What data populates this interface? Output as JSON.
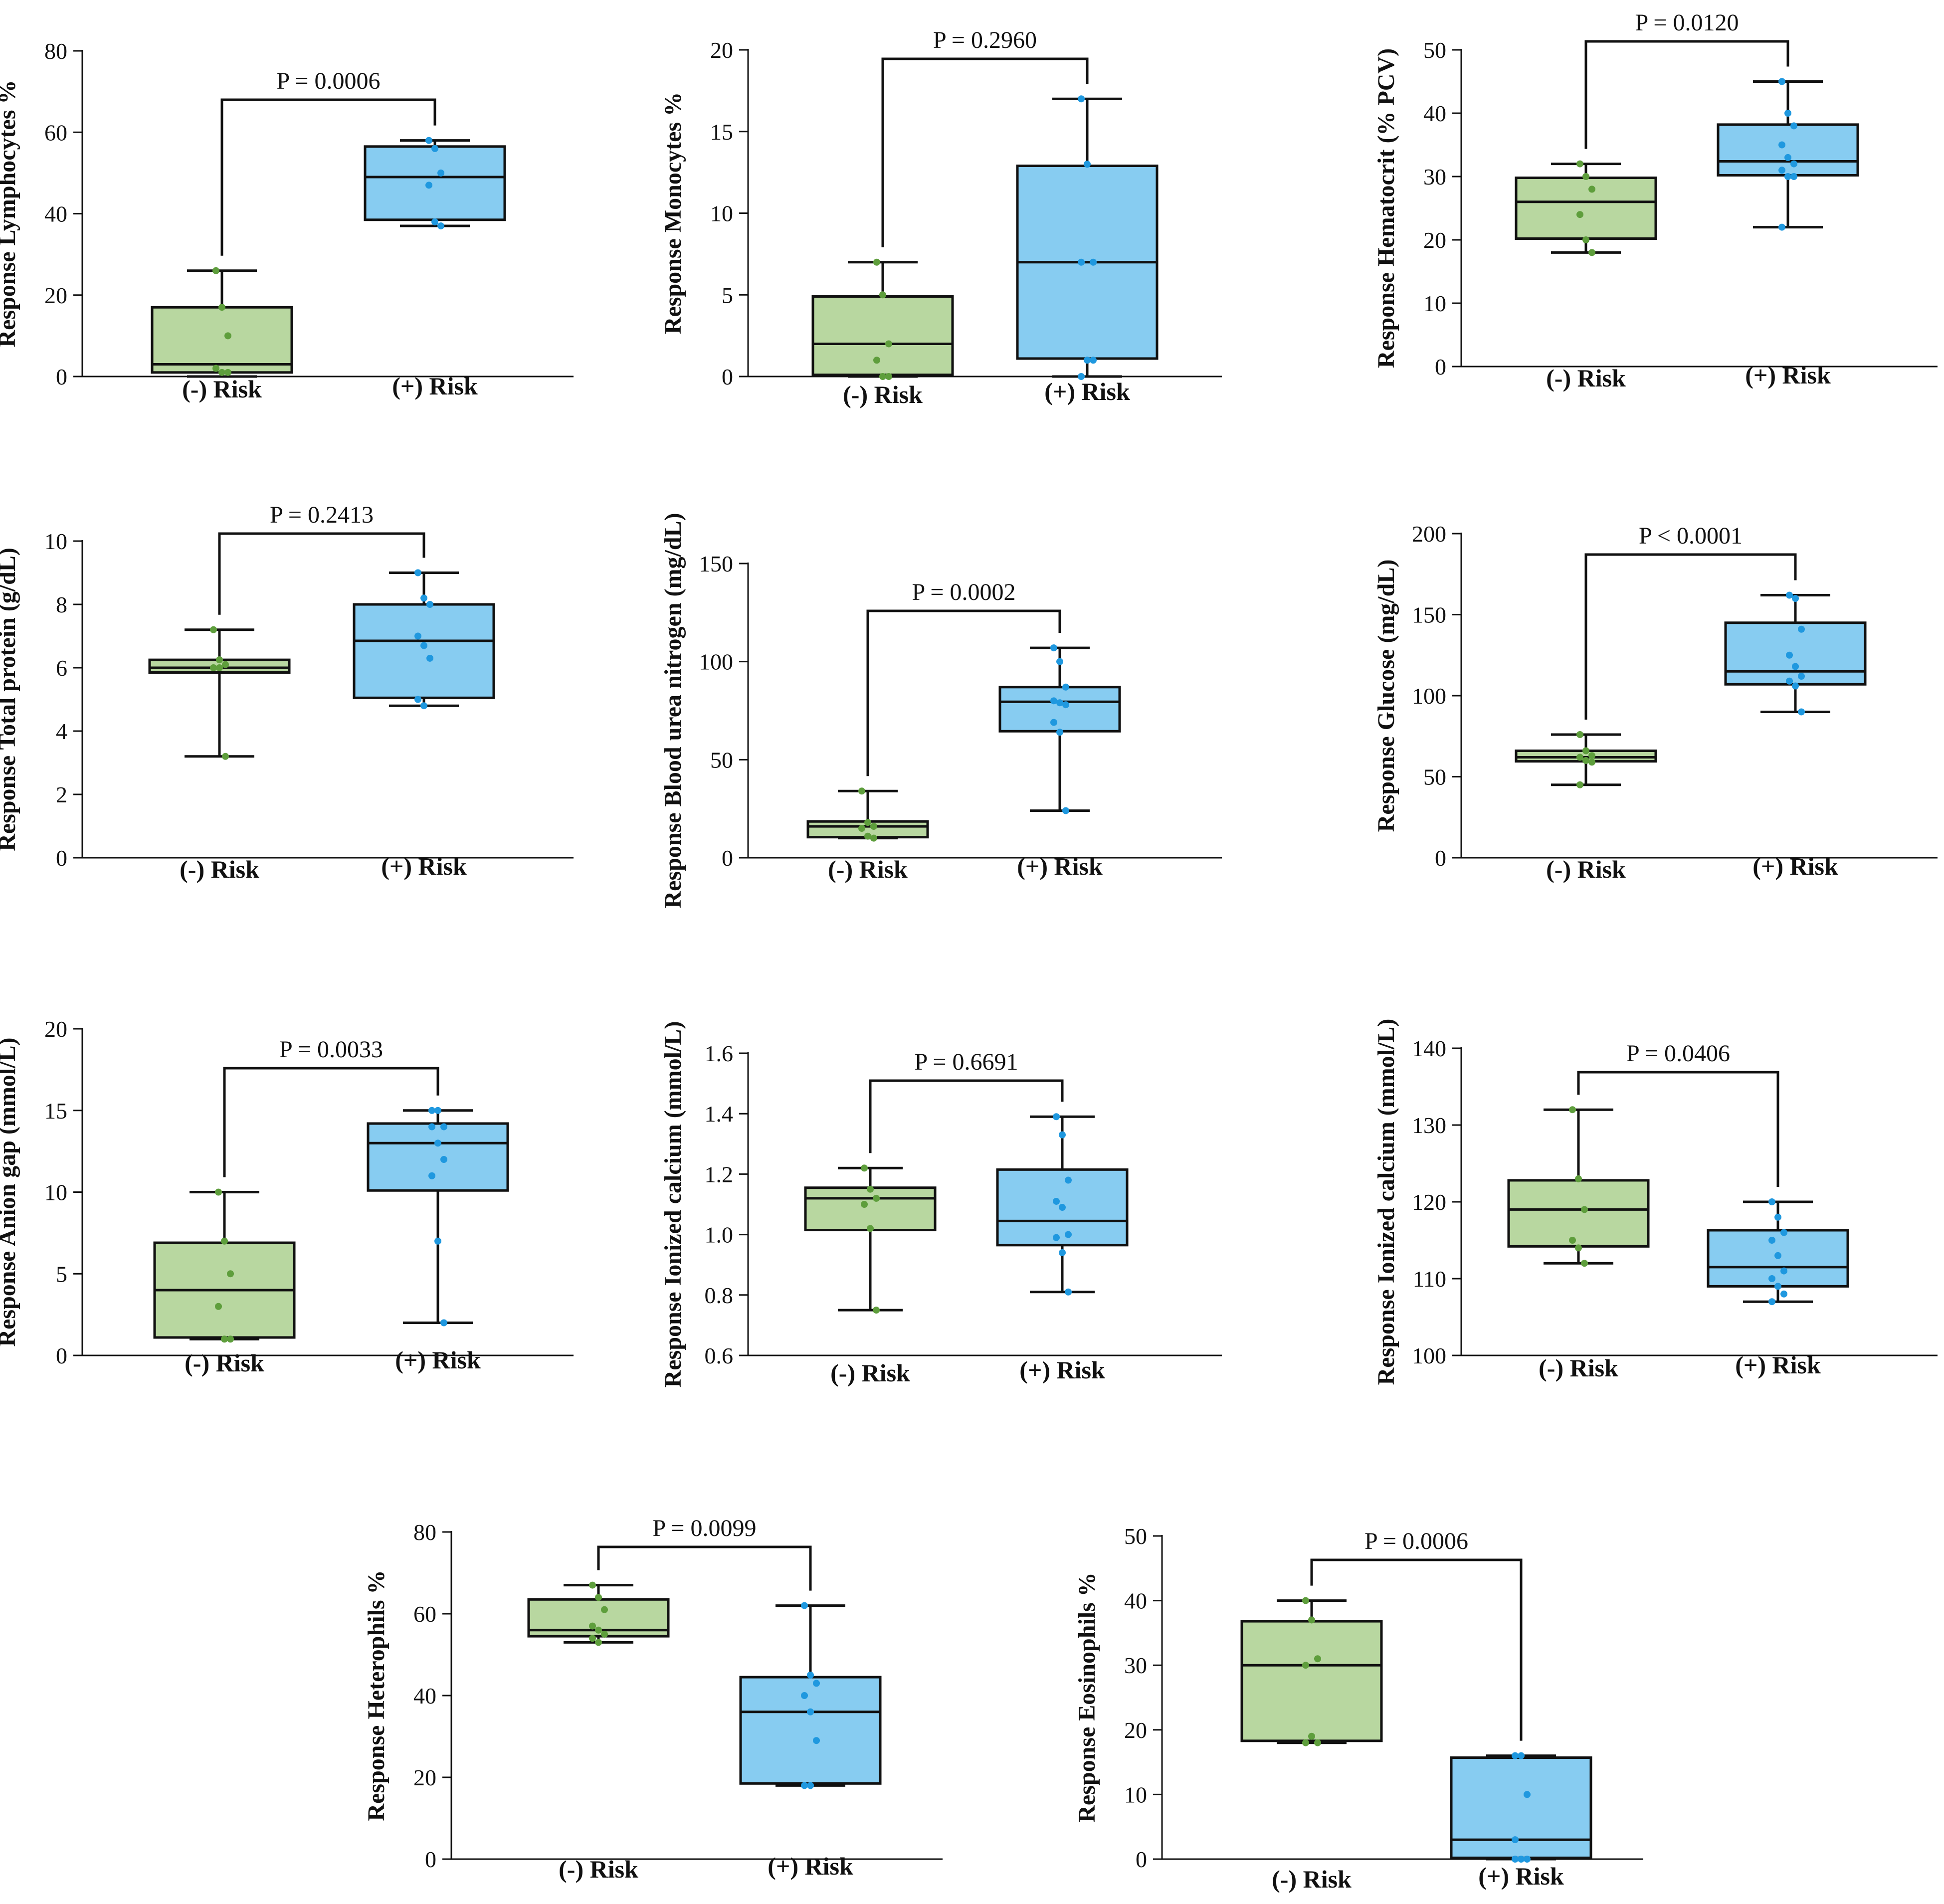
{
  "colors": {
    "neg_fill": "#b8d7a0",
    "pos_fill": "#87ccf1",
    "neg_dot": "#5e9e3c",
    "pos_dot": "#1f98df",
    "stroke": "#111111"
  },
  "chart_data": [
    {
      "type": "box",
      "ylabel": "Response Lymphocytes %",
      "ylim": [
        0,
        80
      ],
      "yticks": [
        0,
        20,
        40,
        60,
        80
      ],
      "yticklabels": [
        "0",
        "20",
        "40",
        "60",
        "80"
      ],
      "pvalue": "P = 0.0006",
      "categories": [
        "(-) Risk",
        "(+) Risk"
      ],
      "series": [
        {
          "name": "(-) Risk",
          "min": 0,
          "q1": 1,
          "median": 3,
          "q3": 17,
          "max": 26,
          "points": [
            26,
            17,
            10,
            2,
            1,
            1
          ]
        },
        {
          "name": "(+) Risk",
          "min": 37,
          "q1": 38.5,
          "median": 49,
          "q3": 56.5,
          "max": 58,
          "points": [
            58,
            56,
            50,
            47,
            38,
            37
          ]
        }
      ]
    },
    {
      "type": "box",
      "ylabel": "Response Monocytes %",
      "ylim": [
        0,
        20
      ],
      "yticks": [
        0,
        5,
        10,
        15,
        20
      ],
      "yticklabels": [
        "0",
        "5",
        "10",
        "15",
        "20"
      ],
      "pvalue": "P = 0.2960",
      "categories": [
        "(-) Risk",
        "(+) Risk"
      ],
      "series": [
        {
          "name": "(-) Risk",
          "min": 0,
          "q1": 0.1,
          "median": 2,
          "q3": 4.9,
          "max": 7,
          "points": [
            7,
            5,
            2,
            1,
            0,
            0
          ]
        },
        {
          "name": "(+) Risk",
          "min": 0,
          "q1": 1.1,
          "median": 7,
          "q3": 12.9,
          "max": 17,
          "points": [
            17,
            13,
            7,
            7,
            1,
            1,
            0
          ]
        }
      ]
    },
    {
      "type": "box",
      "ylabel": "Response Hematocrit (% PCV)",
      "ylim": [
        0,
        50
      ],
      "yticks": [
        0,
        10,
        20,
        30,
        40,
        50
      ],
      "yticklabels": [
        "0",
        "10",
        "20",
        "30",
        "40",
        "50"
      ],
      "pvalue": "P = 0.0120",
      "categories": [
        "(-) Risk",
        "(+) Risk"
      ],
      "series": [
        {
          "name": "(-) Risk",
          "min": 18,
          "q1": 20.2,
          "median": 26,
          "q3": 29.8,
          "max": 32,
          "points": [
            32,
            30,
            28,
            24,
            20,
            18
          ]
        },
        {
          "name": "(+) Risk",
          "min": 22,
          "q1": 30.2,
          "median": 32.4,
          "q3": 38.2,
          "max": 45,
          "points": [
            45,
            40,
            38,
            35,
            33,
            32,
            31,
            30,
            30,
            22
          ]
        }
      ]
    },
    {
      "type": "box",
      "ylabel": "Response Total protein (g/dL)",
      "ylim": [
        0,
        10
      ],
      "yticks": [
        0,
        2,
        4,
        6,
        8,
        10
      ],
      "yticklabels": [
        "0",
        "2",
        "4",
        "6",
        "8",
        "10"
      ],
      "pvalue": "P = 0.2413",
      "categories": [
        "(-) Risk",
        "(+) Risk"
      ],
      "series": [
        {
          "name": "(-) Risk",
          "min": 3.2,
          "q1": 5.85,
          "median": 6.0,
          "q3": 6.25,
          "max": 7.2,
          "points": [
            7.2,
            6.25,
            6.1,
            6.0,
            6.0,
            3.2
          ]
        },
        {
          "name": "(+) Risk",
          "min": 4.8,
          "q1": 5.05,
          "median": 6.85,
          "q3": 8.0,
          "max": 9.0,
          "points": [
            9.0,
            8.2,
            8.0,
            7.0,
            6.7,
            6.3,
            5.0,
            4.8
          ]
        }
      ]
    },
    {
      "type": "box",
      "ylabel": "Response Blood urea nitrogen (mg/dL)",
      "ylim": [
        0,
        150
      ],
      "yticks": [
        0,
        50,
        100,
        150
      ],
      "yticklabels": [
        "0",
        "50",
        "100",
        "150"
      ],
      "pvalue": "P = 0.0002",
      "categories": [
        "(-) Risk",
        "(+) Risk"
      ],
      "series": [
        {
          "name": "(-) Risk",
          "min": 10,
          "q1": 10.5,
          "median": 16,
          "q3": 18.5,
          "max": 34,
          "points": [
            34,
            18,
            16,
            15,
            11,
            10
          ]
        },
        {
          "name": "(+) Risk",
          "min": 24,
          "q1": 64.5,
          "median": 79.5,
          "q3": 87,
          "max": 107,
          "points": [
            107,
            100,
            87,
            80,
            79,
            78,
            69,
            64,
            24
          ]
        }
      ]
    },
    {
      "type": "box",
      "ylabel": "Response Glucose (mg/dL)",
      "ylim": [
        0,
        200
      ],
      "yticks": [
        0,
        50,
        100,
        150,
        200
      ],
      "yticklabels": [
        "0",
        "50",
        "100",
        "150",
        "200"
      ],
      "pvalue": "P < 0.0001",
      "categories": [
        "(-) Risk",
        "(+) Risk"
      ],
      "series": [
        {
          "name": "(-) Risk",
          "min": 45,
          "q1": 59.5,
          "median": 62,
          "q3": 66,
          "max": 76,
          "points": [
            76,
            66,
            63,
            62,
            60,
            59,
            45
          ]
        },
        {
          "name": "(+) Risk",
          "min": 90,
          "q1": 107,
          "median": 115,
          "q3": 145,
          "max": 162,
          "points": [
            162,
            160,
            141,
            125,
            118,
            112,
            109,
            106,
            90
          ]
        }
      ]
    },
    {
      "type": "box",
      "ylabel": "Response Anion gap (mmol/L)",
      "ylim": [
        0,
        20
      ],
      "yticks": [
        0,
        5,
        10,
        15,
        20
      ],
      "yticklabels": [
        "0",
        "5",
        "10",
        "15",
        "20"
      ],
      "pvalue": "P = 0.0033",
      "categories": [
        "(-) Risk",
        "(+) Risk"
      ],
      "series": [
        {
          "name": "(-) Risk",
          "min": 1,
          "q1": 1.1,
          "median": 4,
          "q3": 6.9,
          "max": 10,
          "points": [
            10,
            7,
            5,
            3,
            1,
            1
          ]
        },
        {
          "name": "(+) Risk",
          "min": 2,
          "q1": 10.1,
          "median": 13,
          "q3": 14.2,
          "max": 15,
          "points": [
            15,
            15,
            14,
            14,
            13,
            12,
            11,
            7,
            2
          ]
        }
      ]
    },
    {
      "type": "box",
      "ylabel": "Response Ionized calcium (mmol/L)",
      "ylim": [
        0.6,
        1.6
      ],
      "yticks": [
        0.6,
        0.8,
        1.0,
        1.2,
        1.4,
        1.6
      ],
      "yticklabels": [
        "0.6",
        "0.8",
        "1.0",
        "1.2",
        "1.4",
        "1.6"
      ],
      "pvalue": "P = 0.6691",
      "categories": [
        "(-) Risk",
        "(+) Risk"
      ],
      "series": [
        {
          "name": "(-) Risk",
          "min": 0.75,
          "q1": 1.015,
          "median": 1.12,
          "q3": 1.155,
          "max": 1.22,
          "points": [
            1.22,
            1.15,
            1.12,
            1.1,
            1.02,
            0.75
          ]
        },
        {
          "name": "(+) Risk",
          "min": 0.81,
          "q1": 0.965,
          "median": 1.045,
          "q3": 1.215,
          "max": 1.39,
          "points": [
            1.39,
            1.33,
            1.18,
            1.11,
            1.09,
            1.0,
            0.99,
            0.94,
            0.81
          ]
        }
      ]
    },
    {
      "type": "box",
      "ylabel": "Response Ionized calcium (mmol/L)",
      "ylim": [
        100,
        140
      ],
      "yticks": [
        100,
        110,
        120,
        130,
        140
      ],
      "yticklabels": [
        "100",
        "110",
        "120",
        "130",
        "140"
      ],
      "pvalue": "P = 0.0406",
      "categories": [
        "(-) Risk",
        "(+) Risk"
      ],
      "series": [
        {
          "name": "(-) Risk",
          "min": 112,
          "q1": 114.2,
          "median": 119,
          "q3": 122.8,
          "max": 132,
          "points": [
            132,
            123,
            119,
            115,
            114,
            112
          ]
        },
        {
          "name": "(+) Risk",
          "min": 107,
          "q1": 109,
          "median": 111.5,
          "q3": 116.3,
          "max": 120,
          "points": [
            120,
            118,
            116,
            115,
            113,
            111,
            110,
            109,
            108,
            107
          ]
        }
      ]
    },
    {
      "type": "box",
      "ylabel": "Response Heterophils %",
      "ylim": [
        0,
        80
      ],
      "yticks": [
        0,
        20,
        40,
        60,
        80
      ],
      "yticklabels": [
        "0",
        "20",
        "40",
        "60",
        "80"
      ],
      "pvalue": "P = 0.0099",
      "categories": [
        "(-) Risk",
        "(+) Risk"
      ],
      "series": [
        {
          "name": "(-) Risk",
          "min": 53,
          "q1": 54.5,
          "median": 56,
          "q3": 63.5,
          "max": 67,
          "points": [
            67,
            64,
            61,
            57,
            56,
            55,
            54,
            53
          ]
        },
        {
          "name": "(+) Risk",
          "min": 18,
          "q1": 18.5,
          "median": 36,
          "q3": 44.5,
          "max": 62,
          "points": [
            62,
            45,
            43,
            40,
            36,
            29,
            18,
            18
          ]
        }
      ]
    },
    {
      "type": "box",
      "ylabel": "Response Eosinophils %",
      "ylim": [
        0,
        50
      ],
      "yticks": [
        0,
        10,
        20,
        30,
        40,
        50
      ],
      "yticklabels": [
        "0",
        "10",
        "20",
        "30",
        "40",
        "50"
      ],
      "pvalue": "P = 0.0006",
      "categories": [
        "(-) Risk",
        "(+) Risk"
      ],
      "series": [
        {
          "name": "(-) Risk",
          "min": 18,
          "q1": 18.3,
          "median": 30,
          "q3": 36.8,
          "max": 40,
          "points": [
            40,
            37,
            31,
            30,
            19,
            18,
            18
          ]
        },
        {
          "name": "(+) Risk",
          "min": 0,
          "q1": 0.2,
          "median": 3,
          "q3": 15.7,
          "max": 16,
          "points": [
            16,
            16,
            10,
            3,
            0,
            0,
            0
          ]
        }
      ]
    }
  ]
}
